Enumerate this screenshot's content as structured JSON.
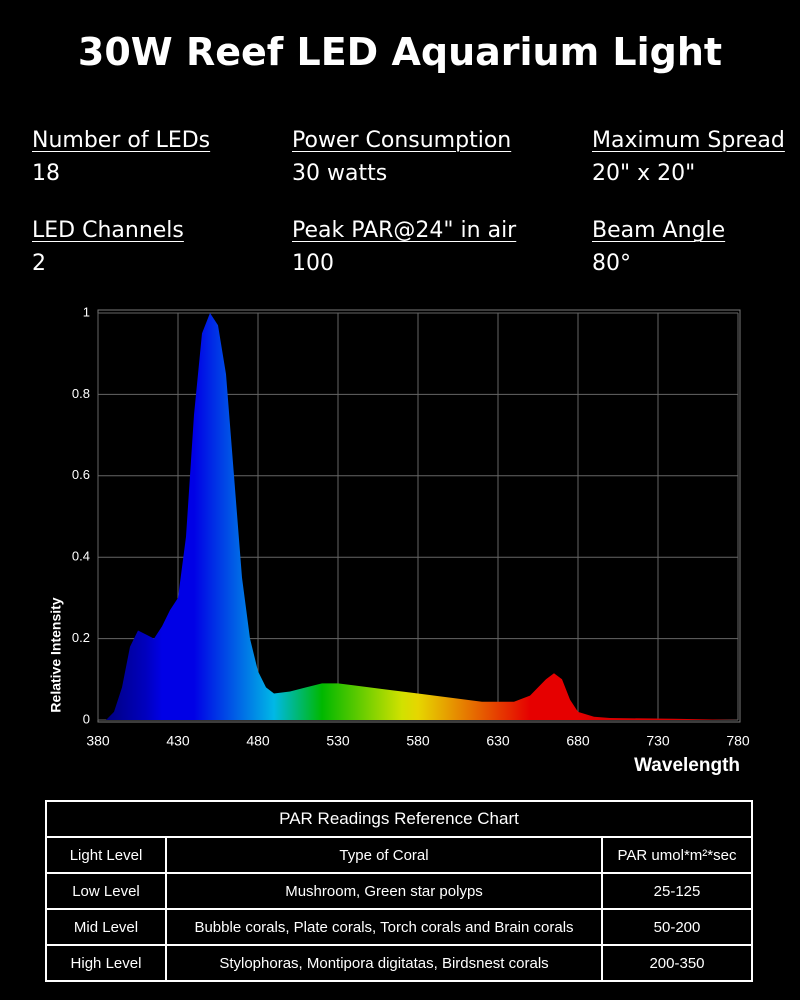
{
  "title": "30W Reef LED Aquarium Light",
  "specs": [
    {
      "label": "Number of LEDs",
      "value": "18"
    },
    {
      "label": "Power Consumption",
      "value": "30 watts"
    },
    {
      "label": "Maximum Spread",
      "value": "20\" x 20\""
    },
    {
      "label": "LED Channels",
      "value": "2"
    },
    {
      "label": "Peak PAR@24\" in air",
      "value": "100"
    },
    {
      "label": "Beam Angle",
      "value": "80°"
    }
  ],
  "chart_data": {
    "type": "area",
    "x_label": "Wavelength",
    "y_label": "Relative Intensity",
    "x": [
      385,
      390,
      395,
      400,
      405,
      410,
      415,
      420,
      425,
      430,
      435,
      440,
      445,
      450,
      455,
      460,
      465,
      470,
      475,
      480,
      485,
      490,
      500,
      510,
      520,
      530,
      540,
      560,
      580,
      600,
      620,
      640,
      650,
      660,
      665,
      670,
      675,
      680,
      690,
      700,
      740,
      780
    ],
    "values": [
      0,
      0.02,
      0.08,
      0.18,
      0.22,
      0.21,
      0.2,
      0.23,
      0.27,
      0.3,
      0.45,
      0.75,
      0.95,
      1.0,
      0.97,
      0.85,
      0.6,
      0.35,
      0.2,
      0.12,
      0.08,
      0.065,
      0.07,
      0.08,
      0.09,
      0.09,
      0.085,
      0.075,
      0.065,
      0.055,
      0.045,
      0.045,
      0.06,
      0.1,
      0.115,
      0.1,
      0.05,
      0.02,
      0.008,
      0.005,
      0.003,
      0
    ],
    "xlim": [
      380,
      780
    ],
    "xticks": [
      380,
      430,
      480,
      530,
      580,
      630,
      680,
      730,
      780
    ],
    "ylim": [
      0,
      1
    ],
    "yticks": [
      0,
      0.2,
      0.4,
      0.6,
      0.8,
      1
    ],
    "grid": true
  },
  "table": {
    "title": "PAR Readings Reference Chart",
    "header": [
      "Light Level",
      "Type of Coral",
      "PAR umol*m²*sec"
    ],
    "rows": [
      [
        "Low Level",
        "Mushroom, Green star polyps",
        "25-125"
      ],
      [
        "Mid Level",
        "Bubble corals, Plate corals, Torch corals and Brain corals",
        "50-200"
      ],
      [
        "High Level",
        "Stylophoras, Montipora digitatas, Birdsnest corals",
        "200-350"
      ]
    ]
  }
}
